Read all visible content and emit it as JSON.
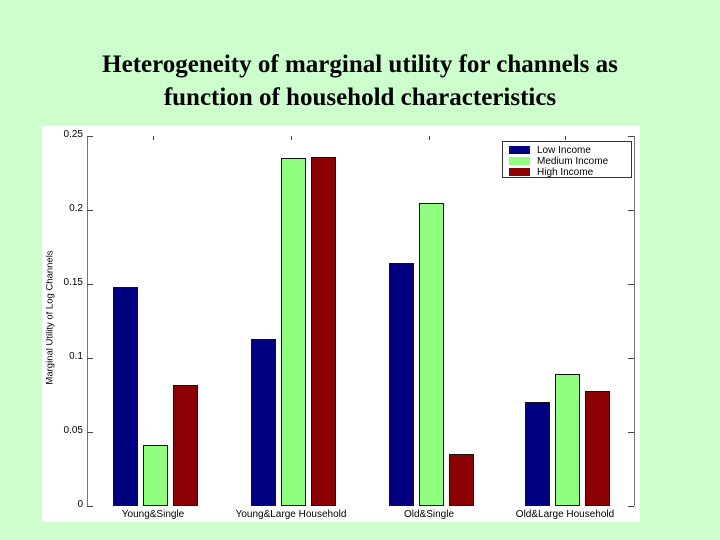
{
  "slide": {
    "title_line1": "Heterogeneity of marginal utility for channels as",
    "title_line2": "function of household characteristics"
  },
  "chart_data": {
    "type": "bar",
    "title": "",
    "xlabel": "",
    "ylabel": "Marginal Utility of Log Channels",
    "ylim": [
      0,
      0.25
    ],
    "yticks": [
      "0",
      "0.05",
      "0.1",
      "0.15",
      "0.2",
      "0.25"
    ],
    "categories": [
      "Young&Single",
      "Young&Large Household",
      "Old&Single",
      "Old&Large Household"
    ],
    "series": [
      {
        "name": "Low Income",
        "color": "#000080",
        "values": [
          0.148,
          0.113,
          0.164,
          0.07
        ]
      },
      {
        "name": "Medium Income",
        "color": "#90ff80",
        "values": [
          0.041,
          0.235,
          0.205,
          0.089
        ]
      },
      {
        "name": "High Income",
        "color": "#8b0000",
        "values": [
          0.082,
          0.236,
          0.035,
          0.078
        ]
      }
    ],
    "legend_position": "top-right",
    "grid": false
  }
}
